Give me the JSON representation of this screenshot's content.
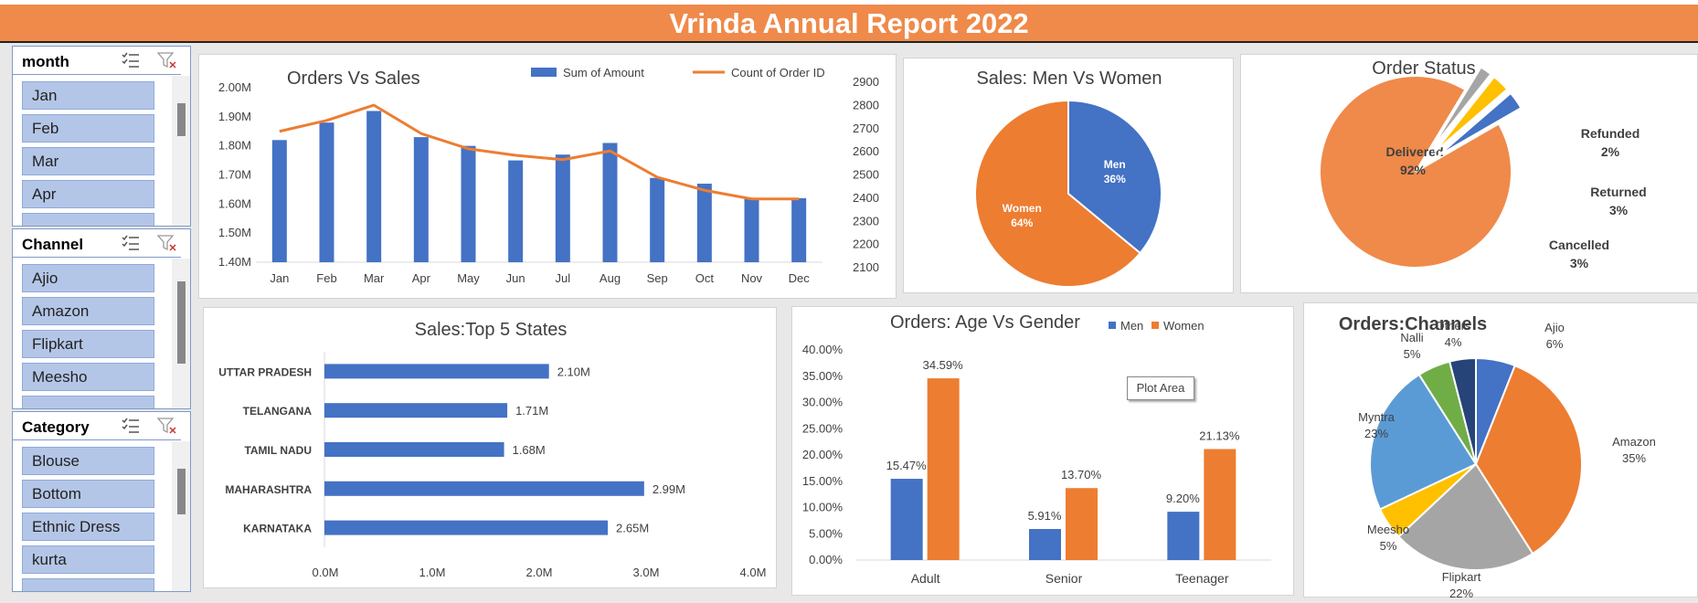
{
  "title": "Vrinda Annual Report 2022",
  "slicers": [
    {
      "name": "month",
      "items": [
        "Jan",
        "Feb",
        "Mar",
        "Apr"
      ]
    },
    {
      "name": "Channel",
      "items": [
        "Ajio",
        "Amazon",
        "Flipkart",
        "Meesho"
      ]
    },
    {
      "name": "Category",
      "items": [
        "Blouse",
        "Bottom",
        "Ethnic Dress",
        "kurta"
      ]
    }
  ],
  "tooltip": "Plot Area",
  "chart_data": [
    {
      "type": "bar",
      "title": "Orders Vs Sales",
      "categories": [
        "Jan",
        "Feb",
        "Mar",
        "Apr",
        "May",
        "Jun",
        "Jul",
        "Aug",
        "Sep",
        "Oct",
        "Nov",
        "Dec"
      ],
      "series": [
        {
          "name": "Sum of Amount",
          "axis": "left",
          "type": "bar",
          "color": "#4472c4",
          "values": [
            1.82,
            1.88,
            1.92,
            1.83,
            1.8,
            1.75,
            1.77,
            1.81,
            1.69,
            1.67,
            1.62,
            1.62
          ]
        },
        {
          "name": "Count of Order ID",
          "axis": "right",
          "type": "line",
          "color": "#ed7d31",
          "values": [
            2700,
            2750,
            2820,
            2690,
            2620,
            2590,
            2570,
            2610,
            2490,
            2430,
            2390,
            2390
          ]
        }
      ],
      "y_left": {
        "ticks": [
          "2.00M",
          "1.90M",
          "1.80M",
          "1.70M",
          "1.60M",
          "1.50M",
          "1.40M"
        ],
        "min": 1.4,
        "max": 2.0
      },
      "y_right": {
        "ticks": [
          "2900",
          "2800",
          "2700",
          "2600",
          "2500",
          "2400",
          "2300",
          "2200",
          "2100"
        ],
        "min": 2100,
        "max": 2900
      }
    },
    {
      "type": "pie",
      "title": "Sales: Men Vs Women",
      "slices": [
        {
          "label": "Men",
          "pct": "36%",
          "value": 36,
          "color": "#4472c4"
        },
        {
          "label": "Women",
          "pct": "64%",
          "value": 64,
          "color": "#ed7d31"
        }
      ]
    },
    {
      "type": "pie",
      "title": "Order Status",
      "slices": [
        {
          "label": "Delivered",
          "pct": "92%",
          "value": 92,
          "color": "#ef8a4a"
        },
        {
          "label": "Refunded",
          "pct": "2%",
          "value": 2,
          "color": "#a5a5a5"
        },
        {
          "label": "Returned",
          "pct": "3%",
          "value": 3,
          "color": "#ffc000"
        },
        {
          "label": "Cancelled",
          "pct": "3%",
          "value": 3,
          "color": "#4472c4"
        }
      ]
    },
    {
      "type": "bar",
      "orientation": "horizontal",
      "title": "Sales:Top 5 States",
      "categories": [
        "UTTAR PRADESH",
        "TELANGANA",
        "TAMIL NADU",
        "MAHARASHTRA",
        "KARNATAKA"
      ],
      "values": [
        2.1,
        1.71,
        1.68,
        2.99,
        2.65
      ],
      "labels": [
        "2.10M",
        "1.71M",
        "1.68M",
        "2.99M",
        "2.65M"
      ],
      "x_ticks": [
        "0.0M",
        "1.0M",
        "2.0M",
        "3.0M",
        "4.0M"
      ],
      "xlim": [
        0,
        4
      ],
      "color": "#4472c4"
    },
    {
      "type": "bar",
      "title": "Orders: Age Vs Gender",
      "categories": [
        "Adult",
        "Senior",
        "Teenager"
      ],
      "series": [
        {
          "name": "Men",
          "color": "#4472c4",
          "values": [
            15.47,
            5.91,
            9.2
          ],
          "labels": [
            "15.47%",
            "5.91%",
            "9.20%"
          ]
        },
        {
          "name": "Women",
          "color": "#ed7d31",
          "values": [
            34.59,
            13.7,
            21.13
          ],
          "labels": [
            "34.59%",
            "13.70%",
            "21.13%"
          ]
        }
      ],
      "y_ticks": [
        "40.00%",
        "35.00%",
        "30.00%",
        "25.00%",
        "20.00%",
        "15.00%",
        "10.00%",
        "5.00%",
        "0.00%"
      ],
      "ylim": [
        0,
        40
      ]
    },
    {
      "type": "pie",
      "title": "Orders:Channels",
      "slices": [
        {
          "label": "Ajio",
          "pct": "6%",
          "value": 6,
          "color": "#4472c4"
        },
        {
          "label": "Amazon",
          "pct": "35%",
          "value": 35,
          "color": "#ed7d31"
        },
        {
          "label": "Flipkart",
          "pct": "22%",
          "value": 22,
          "color": "#a5a5a5"
        },
        {
          "label": "Meesho",
          "pct": "5%",
          "value": 5,
          "color": "#ffc000"
        },
        {
          "label": "Myntra",
          "pct": "23%",
          "value": 23,
          "color": "#5b9bd5"
        },
        {
          "label": "Nalli",
          "pct": "5%",
          "value": 5,
          "color": "#70ad47"
        },
        {
          "label": "Others",
          "pct": "4%",
          "value": 4,
          "color": "#264478"
        }
      ]
    }
  ]
}
